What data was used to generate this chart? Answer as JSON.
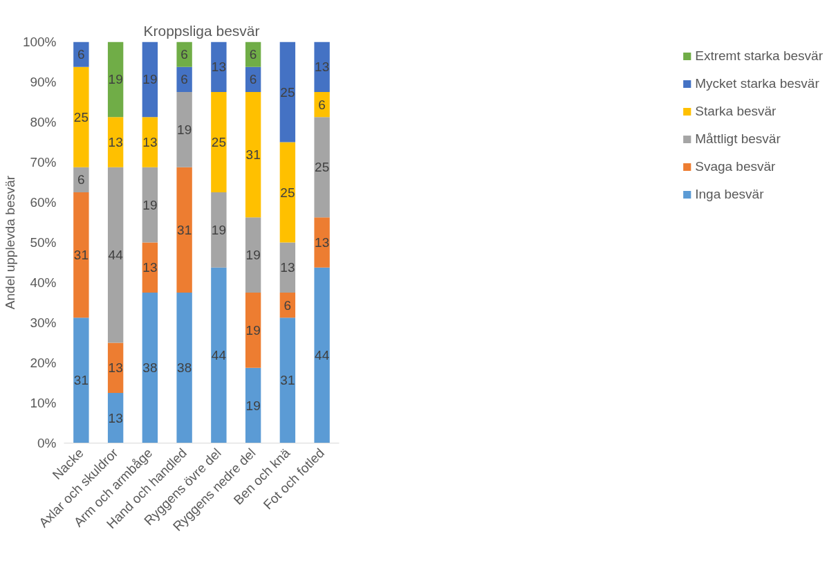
{
  "chart_data": {
    "type": "bar",
    "stacked": true,
    "title": "Kroppsliga besvär",
    "ylabel": "Andel upplevda besvär",
    "categories": [
      "Nacke",
      "Axlar och skuldror",
      "Arm och armbåge",
      "Hand och handled",
      "Ryggens övre del",
      "Ryggens nedre del",
      "Ben och knä",
      "Fot och fotled"
    ],
    "ylim": [
      0,
      100
    ],
    "yticks": [
      {
        "value": 0,
        "label": "0%"
      },
      {
        "value": 10,
        "label": "10%"
      },
      {
        "value": 20,
        "label": "20%"
      },
      {
        "value": 30,
        "label": "30%"
      },
      {
        "value": 40,
        "label": "40%"
      },
      {
        "value": 50,
        "label": "50%"
      },
      {
        "value": 60,
        "label": "60%"
      },
      {
        "value": 70,
        "label": "70%"
      },
      {
        "value": 80,
        "label": "80%"
      },
      {
        "value": 90,
        "label": "90%"
      },
      {
        "value": 100,
        "label": "100%"
      }
    ],
    "grid": false,
    "legend": "right",
    "series": [
      {
        "name": "Inga besvär",
        "color": "#5b9bd5",
        "values": [
          31.25,
          12.5,
          37.5,
          37.5,
          43.75,
          18.75,
          31.25,
          43.75
        ],
        "value_labels": [
          "31",
          "13",
          "38",
          "38",
          "44",
          "19",
          "31",
          "44"
        ]
      },
      {
        "name": "Svaga besvär",
        "color": "#ed7d31",
        "values": [
          31.25,
          12.5,
          12.5,
          31.25,
          null,
          18.75,
          6.25,
          12.5
        ],
        "value_labels": [
          "31",
          "13",
          "13",
          "31",
          null,
          "19",
          "6",
          "13"
        ]
      },
      {
        "name": "Måttligt besvär",
        "color": "#a5a5a5",
        "values": [
          6.25,
          43.75,
          18.75,
          18.75,
          18.75,
          18.75,
          12.5,
          25
        ],
        "value_labels": [
          "6",
          "44",
          "19",
          "19",
          "19",
          "19",
          "13",
          "25"
        ]
      },
      {
        "name": "Starka besvär",
        "color": "#ffc000",
        "values": [
          25,
          12.5,
          12.5,
          null,
          25,
          31.25,
          25,
          6.25
        ],
        "value_labels": [
          "25",
          "13",
          "13",
          null,
          "25",
          "31",
          "25",
          "6"
        ]
      },
      {
        "name": "Mycket starka besvär",
        "color": "#4472c4",
        "values": [
          6.25,
          null,
          18.75,
          6.25,
          12.5,
          6.25,
          25,
          12.5
        ],
        "value_labels": [
          "6",
          null,
          "19",
          "6",
          "13",
          "6",
          "25",
          "13"
        ]
      },
      {
        "name": "Extremt starka besvär",
        "color": "#70ad47",
        "values": [
          null,
          18.75,
          null,
          6.25,
          null,
          6.25,
          null,
          null
        ],
        "value_labels": [
          null,
          "19",
          null,
          "6",
          null,
          "6",
          null,
          null
        ]
      }
    ]
  }
}
